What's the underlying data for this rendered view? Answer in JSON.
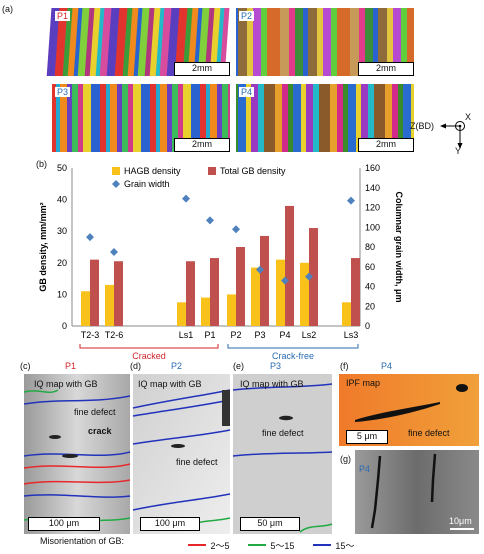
{
  "panels_a": {
    "label": "(a)",
    "maps": [
      {
        "tag": "P1",
        "tag_color": "#d0252a",
        "scale": "2mm"
      },
      {
        "tag": "P2",
        "tag_color": "#2a6bb0",
        "scale": "2mm"
      },
      {
        "tag": "P3",
        "tag_color": "#2a6bb0",
        "scale": "2mm"
      },
      {
        "tag": "P4",
        "tag_color": "#2a6bb0",
        "scale": "2mm"
      }
    ],
    "axes_note": {
      "x": "X",
      "z": "Z(BD)",
      "y": "Y"
    }
  },
  "panel_b_label": "(b)",
  "chart_data": {
    "type": "bar",
    "categories": [
      "T2-3",
      "T2-6",
      "Ls1",
      "P1",
      "P2",
      "P3",
      "P4",
      "Ls2",
      "Ls3"
    ],
    "series": [
      {
        "name": "HAGB density",
        "type": "bar",
        "color": "#f8c21a",
        "values": [
          11,
          13,
          7.5,
          9,
          10,
          18.5,
          21,
          20,
          7.5
        ]
      },
      {
        "name": "Total GB density",
        "type": "bar",
        "color": "#c0504d",
        "values": [
          21,
          20.5,
          20.5,
          21.5,
          25,
          28.5,
          38,
          31,
          21.5
        ]
      },
      {
        "name": "Grain width",
        "type": "scatter",
        "color": "#4f81bd",
        "axis": "right",
        "values": [
          90,
          75,
          129,
          107,
          98,
          57,
          46,
          50,
          127
        ]
      }
    ],
    "ylabel": "GB density, mm/mm²",
    "ylabel2": "Columnar grain width, μm",
    "ylim": [
      0,
      50
    ],
    "ylim2": [
      0,
      160
    ],
    "yticks": [
      0,
      10,
      20,
      30,
      40,
      50
    ],
    "yticks2": [
      0,
      20,
      40,
      60,
      80,
      100,
      120,
      140,
      160
    ],
    "groups": [
      {
        "label": "Cracked",
        "color": "#d0252a"
      },
      {
        "label": "Crack-free",
        "color": "#2a6bb0"
      }
    ]
  },
  "panels_bottom": {
    "c": {
      "label": "(c)",
      "tag": "P1",
      "title": "IQ map with GB",
      "notes": [
        "fine defect",
        "crack"
      ],
      "scale": "100 μm"
    },
    "d": {
      "label": "(d)",
      "tag": "P2",
      "title": "IQ map with GB",
      "notes": [
        "fine defect"
      ],
      "scale": "100 μm"
    },
    "e": {
      "label": "(e)",
      "tag": "P3",
      "title": "IQ map with GB",
      "notes": [
        "fine defect"
      ],
      "scale": "50 μm"
    },
    "f": {
      "label": "(f)",
      "tag": "P4",
      "title": "IPF map",
      "notes": [
        "fine defect"
      ],
      "scale": "5 μm"
    },
    "g": {
      "label": "(g)",
      "tag": "P4",
      "scale": "10μm"
    }
  },
  "legend_bottom": {
    "title": "Misorientation of GB:",
    "items": [
      {
        "label": "2～5",
        "color": "#e8272b"
      },
      {
        "label": "5～15",
        "color": "#22aa44"
      },
      {
        "label": "15～",
        "color": "#2233bb"
      }
    ]
  }
}
